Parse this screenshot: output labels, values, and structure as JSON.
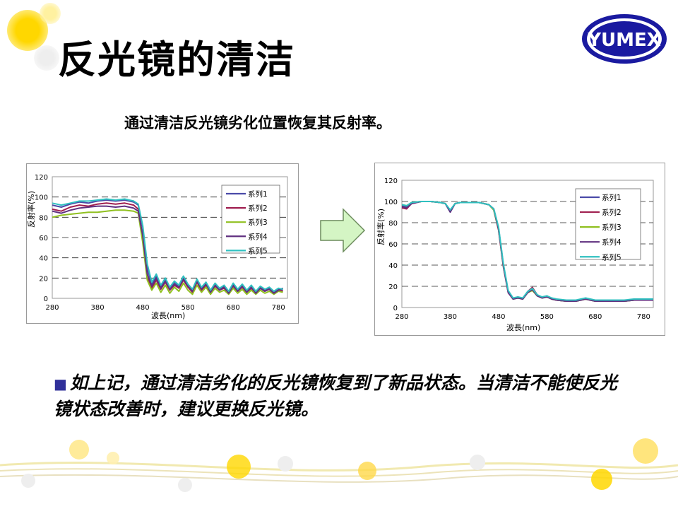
{
  "slide": {
    "title": "反光镜的清洁",
    "subtitle": "通过清洁反光镜劣化位置恢复其反射率。",
    "logo_text": "YUMEX",
    "bullet": "如上记，通过清洁劣化的反光镜恢复到了新品状态。当清洁不能使反光镜状态改善时，建议更换反光镜。",
    "bullet_icon": "square-bullet-icon",
    "arrow_icon": "right-arrow-icon",
    "colors": {
      "bullet": "#30309a",
      "arrow_fill": "#d4f5c4",
      "arrow_stroke": "#6c8c5c",
      "logo": "#1a1aa0"
    }
  },
  "chart_data": [
    {
      "type": "line",
      "title": "",
      "xlabel": "波長(nm)",
      "ylabel": "反射率(%)",
      "xlim": [
        280,
        800
      ],
      "ylim": [
        0,
        120
      ],
      "xticks": [
        280,
        380,
        480,
        580,
        680,
        780
      ],
      "yticks": [
        0,
        20,
        40,
        60,
        80,
        100,
        120
      ],
      "grid": "horizontal-dashed",
      "legend": "top-right",
      "series": [
        {
          "name": "系列1",
          "color": "#4a4aa8",
          "x": [
            280,
            300,
            320,
            340,
            360,
            380,
            400,
            420,
            440,
            460,
            470,
            480,
            490,
            500,
            510,
            520,
            530,
            540,
            550,
            560,
            570,
            580,
            590,
            600,
            610,
            620,
            630,
            640,
            650,
            660,
            670,
            680,
            690,
            700,
            710,
            720,
            730,
            740,
            750,
            760,
            770,
            780,
            790
          ],
          "y": [
            92,
            90,
            93,
            95,
            94,
            96,
            97,
            96,
            97,
            95,
            92,
            70,
            30,
            14,
            22,
            12,
            18,
            10,
            16,
            12,
            20,
            13,
            8,
            18,
            10,
            15,
            7,
            14,
            9,
            12,
            6,
            14,
            8,
            13,
            7,
            12,
            6,
            11,
            8,
            10,
            6,
            9,
            8
          ]
        },
        {
          "name": "系列2",
          "color": "#a02050",
          "x": [
            280,
            300,
            320,
            340,
            360,
            380,
            400,
            420,
            440,
            460,
            470,
            480,
            490,
            500,
            510,
            520,
            530,
            540,
            550,
            560,
            570,
            580,
            590,
            600,
            610,
            620,
            630,
            640,
            650,
            660,
            670,
            680,
            690,
            700,
            710,
            720,
            730,
            740,
            750,
            760,
            770,
            780,
            790
          ],
          "y": [
            88,
            86,
            90,
            92,
            91,
            93,
            94,
            93,
            94,
            92,
            88,
            60,
            22,
            10,
            18,
            9,
            16,
            8,
            13,
            10,
            18,
            11,
            6,
            16,
            8,
            13,
            6,
            12,
            8,
            10,
            5,
            12,
            7,
            11,
            6,
            10,
            5,
            10,
            7,
            9,
            5,
            8,
            7
          ]
        },
        {
          "name": "系列3",
          "color": "#90c020",
          "x": [
            280,
            300,
            320,
            340,
            360,
            380,
            400,
            420,
            440,
            460,
            470,
            480,
            490,
            500,
            510,
            520,
            530,
            540,
            550,
            560,
            570,
            580,
            590,
            600,
            610,
            620,
            630,
            640,
            650,
            660,
            670,
            680,
            690,
            700,
            710,
            720,
            730,
            740,
            750,
            760,
            770,
            780,
            790
          ],
          "y": [
            80,
            82,
            83,
            84,
            85,
            85,
            86,
            87,
            87,
            86,
            84,
            55,
            18,
            8,
            15,
            6,
            13,
            5,
            11,
            7,
            15,
            8,
            4,
            13,
            6,
            11,
            4,
            10,
            6,
            8,
            4,
            10,
            5,
            9,
            4,
            8,
            4,
            8,
            5,
            7,
            4,
            7,
            6
          ]
        },
        {
          "name": "系列4",
          "color": "#603080",
          "x": [
            280,
            300,
            320,
            340,
            360,
            380,
            400,
            420,
            440,
            460,
            470,
            480,
            490,
            500,
            510,
            520,
            530,
            540,
            550,
            560,
            570,
            580,
            590,
            600,
            610,
            620,
            630,
            640,
            650,
            660,
            670,
            680,
            690,
            700,
            710,
            720,
            730,
            740,
            750,
            760,
            770,
            780,
            790
          ],
          "y": [
            86,
            84,
            87,
            89,
            90,
            91,
            91,
            90,
            91,
            89,
            86,
            62,
            24,
            12,
            20,
            10,
            17,
            9,
            14,
            11,
            19,
            12,
            7,
            17,
            9,
            14,
            6,
            13,
            8,
            11,
            5,
            13,
            7,
            12,
            6,
            11,
            5,
            10,
            7,
            9,
            5,
            8,
            10
          ]
        },
        {
          "name": "系列5",
          "color": "#30c0c0",
          "x": [
            280,
            300,
            320,
            340,
            360,
            380,
            400,
            420,
            440,
            460,
            470,
            480,
            490,
            500,
            510,
            520,
            530,
            540,
            550,
            560,
            570,
            580,
            590,
            600,
            610,
            620,
            630,
            640,
            650,
            660,
            670,
            680,
            690,
            700,
            710,
            720,
            730,
            740,
            750,
            760,
            770,
            780,
            790
          ],
          "y": [
            94,
            92,
            94,
            96,
            96,
            97,
            98,
            97,
            98,
            96,
            93,
            72,
            34,
            16,
            24,
            13,
            20,
            11,
            17,
            13,
            22,
            14,
            9,
            19,
            11,
            16,
            8,
            15,
            10,
            13,
            7,
            15,
            9,
            14,
            8,
            13,
            7,
            12,
            9,
            11,
            7,
            10,
            9
          ]
        }
      ]
    },
    {
      "type": "line",
      "title": "",
      "xlabel": "波長(nm)",
      "ylabel": "反射率(%)",
      "xlim": [
        280,
        800
      ],
      "ylim": [
        0,
        120
      ],
      "xticks": [
        280,
        380,
        480,
        580,
        680,
        780
      ],
      "yticks": [
        0,
        20,
        40,
        60,
        80,
        100,
        120
      ],
      "grid": "horizontal-dashed",
      "legend": "top-right",
      "series": [
        {
          "name": "系列1",
          "color": "#4a4aa8",
          "x": [
            280,
            290,
            300,
            320,
            340,
            360,
            370,
            380,
            390,
            400,
            420,
            440,
            460,
            470,
            480,
            490,
            500,
            510,
            520,
            530,
            540,
            550,
            560,
            570,
            580,
            590,
            600,
            620,
            640,
            660,
            680,
            700,
            720,
            740,
            760,
            780,
            800
          ],
          "y": [
            96,
            95,
            99,
            100,
            100,
            99,
            98,
            90,
            98,
            99,
            99,
            99,
            97,
            93,
            75,
            40,
            15,
            8,
            9,
            8,
            14,
            17,
            11,
            9,
            10,
            8,
            7,
            6,
            6,
            8,
            6,
            6,
            6,
            6,
            7,
            7,
            7
          ]
        },
        {
          "name": "系列2",
          "color": "#a02050",
          "x": [
            280,
            290,
            300,
            320,
            340,
            360,
            370,
            380,
            390,
            400,
            420,
            440,
            460,
            470,
            480,
            490,
            500,
            510,
            520,
            530,
            540,
            550,
            560,
            570,
            580,
            590,
            600,
            620,
            640,
            660,
            680,
            700,
            720,
            740,
            760,
            780,
            800
          ],
          "y": [
            94,
            93,
            98,
            100,
            100,
            99,
            98,
            91,
            98,
            99,
            99,
            99,
            97,
            92,
            73,
            38,
            14,
            8,
            10,
            8,
            15,
            19,
            12,
            9,
            11,
            8,
            7,
            6,
            6,
            8,
            6,
            6,
            6,
            6,
            7,
            7,
            7
          ]
        },
        {
          "name": "系列3",
          "color": "#90c020",
          "x": [
            280,
            290,
            300,
            320,
            340,
            360,
            370,
            380,
            390,
            400,
            420,
            440,
            460,
            470,
            480,
            490,
            500,
            510,
            520,
            530,
            540,
            550,
            560,
            570,
            580,
            590,
            600,
            620,
            640,
            660,
            680,
            700,
            720,
            740,
            760,
            780,
            800
          ],
          "y": [
            97,
            96,
            99,
            100,
            100,
            99,
            98,
            91,
            98,
            99,
            99,
            99,
            97,
            92,
            74,
            39,
            15,
            8,
            9,
            8,
            14,
            16,
            11,
            9,
            10,
            8,
            7,
            6,
            6,
            8,
            6,
            6,
            6,
            6,
            7,
            7,
            7
          ]
        },
        {
          "name": "系列4",
          "color": "#603080",
          "x": [
            280,
            290,
            300,
            320,
            340,
            360,
            370,
            380,
            390,
            400,
            420,
            440,
            460,
            470,
            480,
            490,
            500,
            510,
            520,
            530,
            540,
            550,
            560,
            570,
            580,
            590,
            600,
            620,
            640,
            660,
            680,
            700,
            720,
            740,
            760,
            780,
            800
          ],
          "y": [
            95,
            94,
            98,
            100,
            100,
            99,
            98,
            90,
            98,
            99,
            99,
            99,
            97,
            93,
            74,
            39,
            14,
            8,
            9,
            8,
            14,
            17,
            11,
            9,
            10,
            8,
            7,
            6,
            6,
            8,
            6,
            6,
            6,
            6,
            7,
            7,
            7
          ]
        },
        {
          "name": "系列5",
          "color": "#30c0c0",
          "x": [
            280,
            290,
            300,
            320,
            340,
            360,
            370,
            380,
            390,
            400,
            420,
            440,
            460,
            470,
            480,
            490,
            500,
            510,
            520,
            530,
            540,
            550,
            560,
            570,
            580,
            590,
            600,
            620,
            640,
            660,
            680,
            700,
            720,
            740,
            760,
            780,
            800
          ],
          "y": [
            97,
            96,
            99,
            100,
            100,
            99,
            98,
            92,
            98,
            99,
            99,
            99,
            97,
            93,
            76,
            41,
            16,
            9,
            10,
            9,
            15,
            18,
            12,
            10,
            11,
            9,
            8,
            7,
            7,
            9,
            7,
            7,
            7,
            7,
            8,
            8,
            8
          ]
        }
      ]
    }
  ]
}
